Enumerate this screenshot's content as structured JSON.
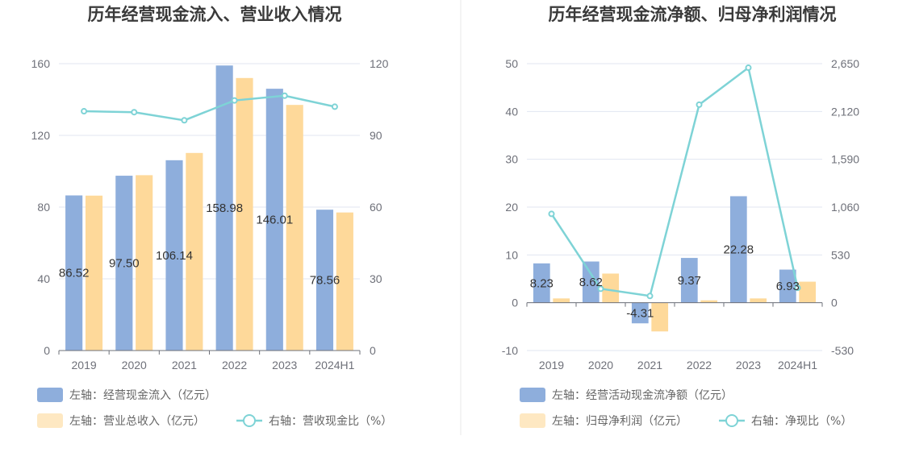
{
  "colors": {
    "bar_primary": "#8eaedc",
    "bar_secondary": "#fed99a",
    "line": "#7ed3d6",
    "grid": "#e0e6f1",
    "axis": "#6e7079",
    "divider": "#e8e8e8"
  },
  "chart_data": [
    {
      "type": "bar",
      "title": "历年经营现金流入、营业收入情况",
      "categories": [
        "2019",
        "2020",
        "2021",
        "2022",
        "2023",
        "2024H1"
      ],
      "left_axis": {
        "min": 0,
        "max": 160,
        "ticks": [
          "0",
          "40",
          "80",
          "120",
          "160"
        ]
      },
      "right_axis": {
        "min": 0,
        "max": 120,
        "ticks": [
          "0",
          "30",
          "60",
          "90",
          "120"
        ]
      },
      "series": [
        {
          "name": "左轴：经营现金流入（亿元）",
          "axis": "left",
          "kind": "bar",
          "values": [
            86.52,
            97.5,
            106.14,
            158.98,
            146.01,
            78.56
          ],
          "labels": [
            "86.52",
            "97.50",
            "106.14",
            "158.98",
            "146.01",
            "78.56"
          ]
        },
        {
          "name": "左轴：营业总收入（亿元）",
          "axis": "left",
          "kind": "bar",
          "values": [
            86.4,
            97.8,
            110.2,
            152.0,
            137.0,
            77.0
          ]
        },
        {
          "name": "右轴：营收现金比（%）",
          "axis": "right",
          "kind": "line",
          "values": [
            100.1,
            99.7,
            96.3,
            104.6,
            106.6,
            102.0
          ]
        }
      ]
    },
    {
      "type": "bar",
      "title": "历年经营现金流净额、归母净利润情况",
      "categories": [
        "2019",
        "2020",
        "2021",
        "2022",
        "2023",
        "2024H1"
      ],
      "left_axis": {
        "min": -10,
        "max": 50,
        "ticks": [
          "-10",
          "0",
          "10",
          "20",
          "30",
          "40",
          "50"
        ]
      },
      "right_axis": {
        "min": -530,
        "max": 2650,
        "ticks": [
          "-530",
          "0",
          "530",
          "1,060",
          "1,590",
          "2,120",
          "2,650"
        ]
      },
      "series": [
        {
          "name": "左轴：经营活动现金流净额（亿元）",
          "axis": "left",
          "kind": "bar",
          "values": [
            8.23,
            8.62,
            -4.31,
            9.37,
            22.28,
            6.93
          ],
          "labels": [
            "8.23",
            "8.62",
            "-4.31",
            "9.37",
            "22.28",
            "6.93"
          ]
        },
        {
          "name": "左轴：归母净利润（亿元）",
          "axis": "left",
          "kind": "bar",
          "values": [
            0.9,
            6.1,
            -6.0,
            0.5,
            0.9,
            4.4
          ]
        },
        {
          "name": "右轴：净现比（%）",
          "axis": "right",
          "kind": "line",
          "values": [
            985,
            155,
            75,
            2195,
            2605,
            165
          ]
        }
      ]
    }
  ]
}
